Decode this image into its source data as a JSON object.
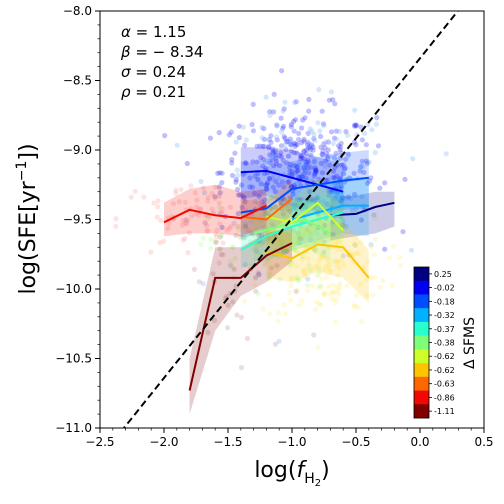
{
  "chart_data": {
    "type": "scatter",
    "title": "",
    "xlabel_main": "log(",
    "xlabel_sym": "f",
    "xlabel_sub": "H",
    "xlabel_sub2": "2",
    "xlabel_close": ")",
    "ylabel_main": "log(SFE[yr",
    "ylabel_sup": "−1",
    "ylabel_close": "])",
    "xlim": [
      -2.5,
      0.5
    ],
    "ylim": [
      -11.0,
      -8.0
    ],
    "x_ticks": [
      -2.5,
      -2.0,
      -1.5,
      -1.0,
      -0.5,
      0.0,
      0.5
    ],
    "x_tick_labels": [
      "−2.5",
      "−2.0",
      "−1.5",
      "−1.0",
      "−0.5",
      "0.0",
      "0.5"
    ],
    "y_ticks": [
      -11.0,
      -10.5,
      -10.0,
      -9.5,
      -9.0,
      -8.5,
      -8.0
    ],
    "y_tick_labels": [
      "−11.0",
      "−10.5",
      "−10.0",
      "−9.5",
      "−9.0",
      "−8.5",
      "−8.0"
    ],
    "grid": false,
    "annotations": [
      {
        "symbol": "α",
        "text": " = 1.15"
      },
      {
        "symbol": "β",
        "text": " = − 8.34"
      },
      {
        "symbol": "σ",
        "text": " = 0.24"
      },
      {
        "symbol": "ρ",
        "text": " = 0.21"
      }
    ],
    "fit_line": {
      "slope": 1.15,
      "intercept": -8.34,
      "style": "dashed",
      "color": "#000000"
    },
    "colorbar": {
      "label": "Δ SFMS",
      "placement": "lower-right-inset",
      "bins": [
        {
          "label": "0.25",
          "color": "#000080"
        },
        {
          "label": "-0.02",
          "color": "#0000f1"
        },
        {
          "label": "-0.18",
          "color": "#004dff"
        },
        {
          "label": "-0.32",
          "color": "#00b1ff"
        },
        {
          "label": "-0.37",
          "color": "#29ffce"
        },
        {
          "label": "-0.38",
          "color": "#7dff7a"
        },
        {
          "label": "-0.62",
          "color": "#ceff29"
        },
        {
          "label": "-0.62",
          "color": "#ffc400"
        },
        {
          "label": "-0.63",
          "color": "#ff6800"
        },
        {
          "label": "-0.86",
          "color": "#f10800"
        },
        {
          "label": "-1.11",
          "color": "#800000"
        }
      ]
    },
    "scatter_clouds": [
      {
        "color": "#1a1aff",
        "cx": -0.95,
        "cy": -9.15,
        "sx": 0.3,
        "sy": 0.22,
        "n": 380
      },
      {
        "color": "#66aaff",
        "cx": -0.9,
        "cy": -9.25,
        "sx": 0.35,
        "sy": 0.28,
        "n": 160
      },
      {
        "color": "#ff9999",
        "cx": -1.75,
        "cy": -9.5,
        "sx": 0.3,
        "sy": 0.14,
        "n": 90
      },
      {
        "color": "#ffee77",
        "cx": -0.75,
        "cy": -9.85,
        "sx": 0.25,
        "sy": 0.2,
        "n": 150
      },
      {
        "color": "#aaff88",
        "cx": -1.15,
        "cy": -9.7,
        "sx": 0.25,
        "sy": 0.15,
        "n": 90
      },
      {
        "color": "#bb8888",
        "cx": -1.4,
        "cy": -10.0,
        "sx": 0.25,
        "sy": 0.35,
        "n": 40
      }
    ],
    "series": [
      {
        "color": "#000080",
        "x": [
          -0.7,
          -0.5,
          -0.35,
          -0.2
        ],
        "y": [
          -9.47,
          -9.46,
          -9.41,
          -9.38
        ],
        "lo": [
          -9.65,
          -9.62,
          -9.6,
          -9.55
        ],
        "hi": [
          -9.33,
          -9.33,
          -9.3,
          -9.3
        ]
      },
      {
        "color": "#0000f1",
        "x": [
          -1.4,
          -1.2,
          -1.0,
          -0.8,
          -0.6
        ],
        "y": [
          -9.16,
          -9.15,
          -9.2,
          -9.25,
          -9.3
        ],
        "lo": [
          -9.35,
          -9.33,
          -9.4,
          -9.45,
          -9.5
        ],
        "hi": [
          -8.98,
          -8.98,
          -9.0,
          -9.05,
          -9.1
        ]
      },
      {
        "color": "#004dff",
        "x": [
          -1.4,
          -1.2,
          -1.0,
          -0.8,
          -0.6,
          -0.4
        ],
        "y": [
          -9.45,
          -9.42,
          -9.28,
          -9.25,
          -9.22,
          -9.2
        ],
        "lo": [
          -9.63,
          -9.6,
          -9.47,
          -9.45,
          -9.43,
          -9.42
        ],
        "hi": [
          -9.08,
          -9.12,
          -9.08,
          -9.05,
          -9.02,
          -9.0
        ]
      },
      {
        "color": "#00b1ff",
        "x": [
          -1.0,
          -0.8,
          -0.6,
          -0.4
        ],
        "y": [
          -9.5,
          -9.45,
          -9.4,
          -9.4
        ],
        "lo": [
          -9.7,
          -9.65,
          -9.6,
          -9.62
        ],
        "hi": [
          -9.3,
          -9.25,
          -9.2,
          -9.2
        ]
      },
      {
        "color": "#29ffce",
        "x": [
          -1.4,
          -1.2,
          -1.0,
          -0.8,
          -0.6
        ],
        "y": [
          -9.72,
          -9.62,
          -9.55,
          -9.5,
          -9.45
        ],
        "lo": [
          -9.85,
          -9.8,
          -9.72,
          -9.68,
          -9.63
        ],
        "hi": [
          -9.5,
          -9.45,
          -9.4,
          -9.33,
          -9.28
        ]
      },
      {
        "color": "#7dff7a",
        "x": [
          -1.3,
          -1.1,
          -0.9,
          -0.7
        ],
        "y": [
          -9.6,
          -9.55,
          -9.5,
          -9.6
        ],
        "lo": [
          -9.8,
          -9.75,
          -9.7,
          -9.8
        ],
        "hi": [
          -9.45,
          -9.4,
          -9.35,
          -9.45
        ]
      },
      {
        "color": "#ceff29",
        "x": [
          -1.2,
          -1.0,
          -0.8,
          -0.6
        ],
        "y": [
          -9.48,
          -9.52,
          -9.38,
          -9.58
        ],
        "lo": [
          -9.68,
          -9.7,
          -9.55,
          -9.75
        ],
        "hi": [
          -9.3,
          -9.35,
          -9.2,
          -9.42
        ]
      },
      {
        "color": "#ffc400",
        "x": [
          -1.2,
          -1.0,
          -0.8,
          -0.6,
          -0.4
        ],
        "y": [
          -9.73,
          -9.78,
          -9.68,
          -9.7,
          -9.92
        ],
        "lo": [
          -9.92,
          -9.95,
          -9.88,
          -9.92,
          -10.1
        ],
        "hi": [
          -9.55,
          -9.6,
          -9.5,
          -9.52,
          -9.72
        ]
      },
      {
        "color": "#ff6800",
        "x": [
          -1.4,
          -1.2,
          -1.0
        ],
        "y": [
          -9.48,
          -9.5,
          -9.35
        ],
        "lo": [
          -9.6,
          -9.62,
          -9.5
        ],
        "hi": [
          -9.35,
          -9.38,
          -9.2
        ]
      },
      {
        "color": "#f10800",
        "x": [
          -2.0,
          -1.8,
          -1.6,
          -1.4,
          -1.2
        ],
        "y": [
          -9.52,
          -9.43,
          -9.47,
          -9.49,
          -9.4
        ],
        "lo": [
          -9.62,
          -9.6,
          -9.6,
          -9.62,
          -9.55
        ],
        "hi": [
          -9.38,
          -9.28,
          -9.25,
          -9.3,
          -9.28
        ]
      },
      {
        "color": "#800000",
        "x": [
          -1.8,
          -1.6,
          -1.4,
          -1.2,
          -1.0
        ],
        "y": [
          -10.73,
          -9.92,
          -9.92,
          -9.76,
          -9.67
        ],
        "lo": [
          -10.9,
          -10.3,
          -10.05,
          -9.95,
          -9.8
        ],
        "hi": [
          -10.5,
          -9.7,
          -9.7,
          -9.6,
          -9.55
        ]
      }
    ]
  }
}
